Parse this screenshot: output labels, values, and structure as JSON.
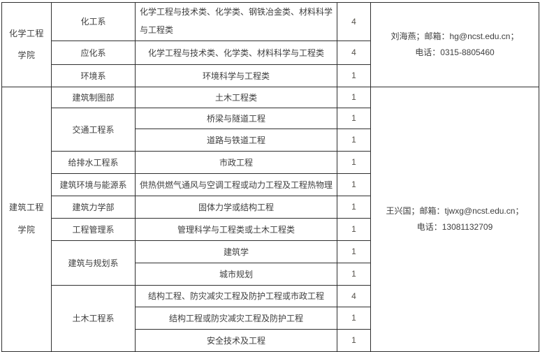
{
  "colors": {
    "border": "#2f2f2f",
    "text": "#3e3e3e",
    "background": "#ffffff"
  },
  "table": {
    "colleges": [
      {
        "name": "化学工程学院",
        "contact": [
          "刘海燕；邮箱：hg@ncst.edu.cn；",
          "电话：0315-8805460"
        ]
      },
      {
        "name": "建筑工程学院",
        "contact": [
          "王兴国；邮箱：tjwxg@ncst.edu.cn；",
          "电话：13081132709"
        ]
      }
    ],
    "departments": [
      {
        "name": "化工系"
      },
      {
        "name": "应化系"
      },
      {
        "name": "环境系"
      },
      {
        "name": "建筑制图部"
      },
      {
        "name": "交通工程系"
      },
      {
        "name": "给排水工程系"
      },
      {
        "name": "建筑环境与能源系"
      },
      {
        "name": "建筑力学部"
      },
      {
        "name": "工程管理系"
      },
      {
        "name": "建筑与规划系"
      },
      {
        "name": "土木工程系"
      }
    ],
    "rows": [
      {
        "major": "化学工程与技术类、化学类、钢铁冶金类、材料科学与工程类",
        "count": "4"
      },
      {
        "major": "化学工程与技术类、化学类、材料科学与工程类",
        "count": "4"
      },
      {
        "major": "环境科学与工程类",
        "count": "1"
      },
      {
        "major": "土木工程类",
        "count": "1"
      },
      {
        "major": "桥梁与隧道工程",
        "count": "1"
      },
      {
        "major": "道路与铁道工程",
        "count": "1"
      },
      {
        "major": "市政工程",
        "count": "1"
      },
      {
        "major": "供热供燃气通风与空调工程或动力工程及工程热物理",
        "count": "1"
      },
      {
        "major": "固体力学或结构工程",
        "count": "1"
      },
      {
        "major": "管理科学与工程类或土木工程类",
        "count": "1"
      },
      {
        "major": "建筑学",
        "count": "1"
      },
      {
        "major": "城市规划",
        "count": "1"
      },
      {
        "major": "结构工程、防灾减灾工程及防护工程或市政工程",
        "count": "4"
      },
      {
        "major": "结构工程或防灾减灾工程及防护工程",
        "count": "1"
      },
      {
        "major": "安全技术及工程",
        "count": "1"
      }
    ]
  }
}
